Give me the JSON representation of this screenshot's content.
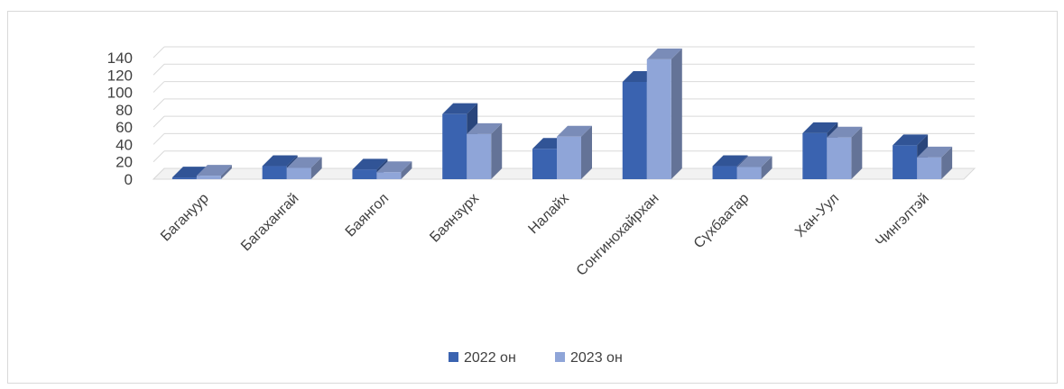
{
  "chart_data": {
    "type": "bar",
    "title": "",
    "xlabel": "",
    "ylabel": "",
    "categories": [
      "Багануур",
      "Багахангай",
      "Баянгол",
      "Баянзүрх",
      "Налайх",
      "Сонгинохайрхан",
      "Сүхбаатар",
      "Хан-Уул",
      "Чингэлтэй"
    ],
    "series": [
      {
        "name": "2022 он",
        "values": [
          2,
          15,
          11,
          75,
          35,
          112,
          15,
          53,
          39
        ]
      },
      {
        "name": "2023 он",
        "values": [
          4,
          13,
          8,
          52,
          49,
          138,
          14,
          48,
          25
        ]
      }
    ],
    "ylim": [
      0,
      140
    ],
    "yticks": [
      0,
      20,
      40,
      60,
      80,
      100,
      120,
      140
    ],
    "grid": true,
    "style": "3d-clustered-column",
    "legend_position": "bottom",
    "colors": {
      "2022 он": "#3a63b0",
      "2023 он": "#8fa5d8"
    }
  }
}
